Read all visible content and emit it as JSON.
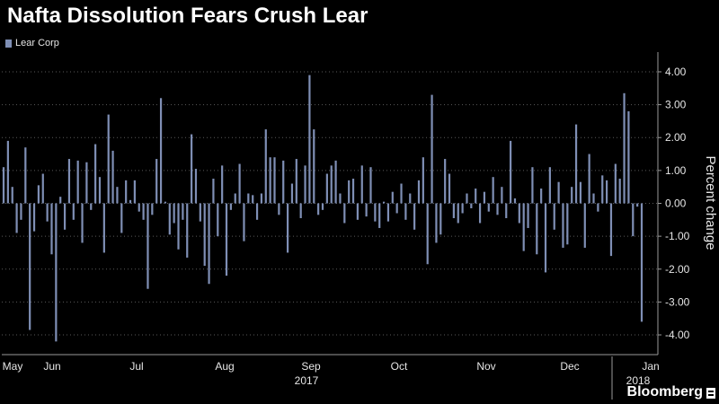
{
  "chart_data": {
    "type": "bar",
    "title": "Nafta Dissolution Fears Crush Lear",
    "series_name": "Lear Corp",
    "ylabel": "Percent change",
    "xlabel": "",
    "ylim": [
      -4.6,
      4.6
    ],
    "yticks": [
      "4.00",
      "3.00",
      "2.00",
      "1.00",
      "0.00",
      "-1.00",
      "-2.00",
      "-3.00",
      "-4.00"
    ],
    "month_labels": [
      "May",
      "Jun",
      "Jul",
      "Aug",
      "Sep",
      "Oct",
      "Nov",
      "Dec",
      "Jan"
    ],
    "year_labels": [
      "2017",
      "2018"
    ],
    "grid": true,
    "legend_position": "top-left",
    "bar_color": "#7f8fb5",
    "values": [
      1.1,
      1.9,
      0.5,
      -0.9,
      -0.5,
      1.7,
      -3.85,
      -0.85,
      0.55,
      0.9,
      -0.55,
      -1.55,
      -4.2,
      0.2,
      -0.8,
      1.35,
      -0.5,
      1.3,
      -1.2,
      1.25,
      -0.2,
      1.8,
      0.8,
      -1.5,
      2.7,
      1.6,
      0.5,
      -0.9,
      0.7,
      0.1,
      0.7,
      -0.25,
      -0.5,
      -2.6,
      -0.35,
      1.35,
      3.2,
      0.05,
      -0.95,
      -0.6,
      -1.4,
      -0.5,
      -1.65,
      2.1,
      1.05,
      -0.55,
      -1.9,
      -2.45,
      0.75,
      -1.0,
      1.15,
      -2.2,
      -0.2,
      0.3,
      1.2,
      -1.15,
      0.3,
      0.25,
      -0.5,
      0.3,
      2.25,
      1.4,
      1.4,
      -0.35,
      1.3,
      -1.5,
      0.6,
      1.35,
      -0.45,
      1.15,
      3.9,
      2.25,
      -0.35,
      -0.2,
      0.9,
      1.15,
      1.3,
      0.3,
      -0.6,
      0.7,
      0.75,
      -0.5,
      1.15,
      -0.4,
      1.1,
      -0.55,
      -0.75,
      0.05,
      -0.55,
      0.35,
      -0.3,
      0.6,
      -0.5,
      0.3,
      -0.8,
      0.7,
      1.4,
      -1.85,
      3.3,
      -1.2,
      -0.95,
      1.35,
      0.9,
      -0.45,
      -0.6,
      -0.3,
      0.3,
      -0.15,
      0.45,
      -0.6,
      0.35,
      -0.25,
      0.8,
      -0.35,
      0.5,
      -0.45,
      1.9,
      0.15,
      -0.6,
      -1.45,
      -0.75,
      1.1,
      -1.55,
      0.45,
      -2.1,
      1.1,
      -0.8,
      0.65,
      -1.35,
      -1.25,
      0.5,
      2.4,
      0.65,
      -1.35,
      1.5,
      0.3,
      -0.25,
      0.85,
      0.7,
      -1.6,
      1.2,
      0.75,
      3.35,
      2.8,
      -1.0,
      -0.1,
      -3.6
    ]
  },
  "brand": {
    "name": "Bloomberg"
  }
}
